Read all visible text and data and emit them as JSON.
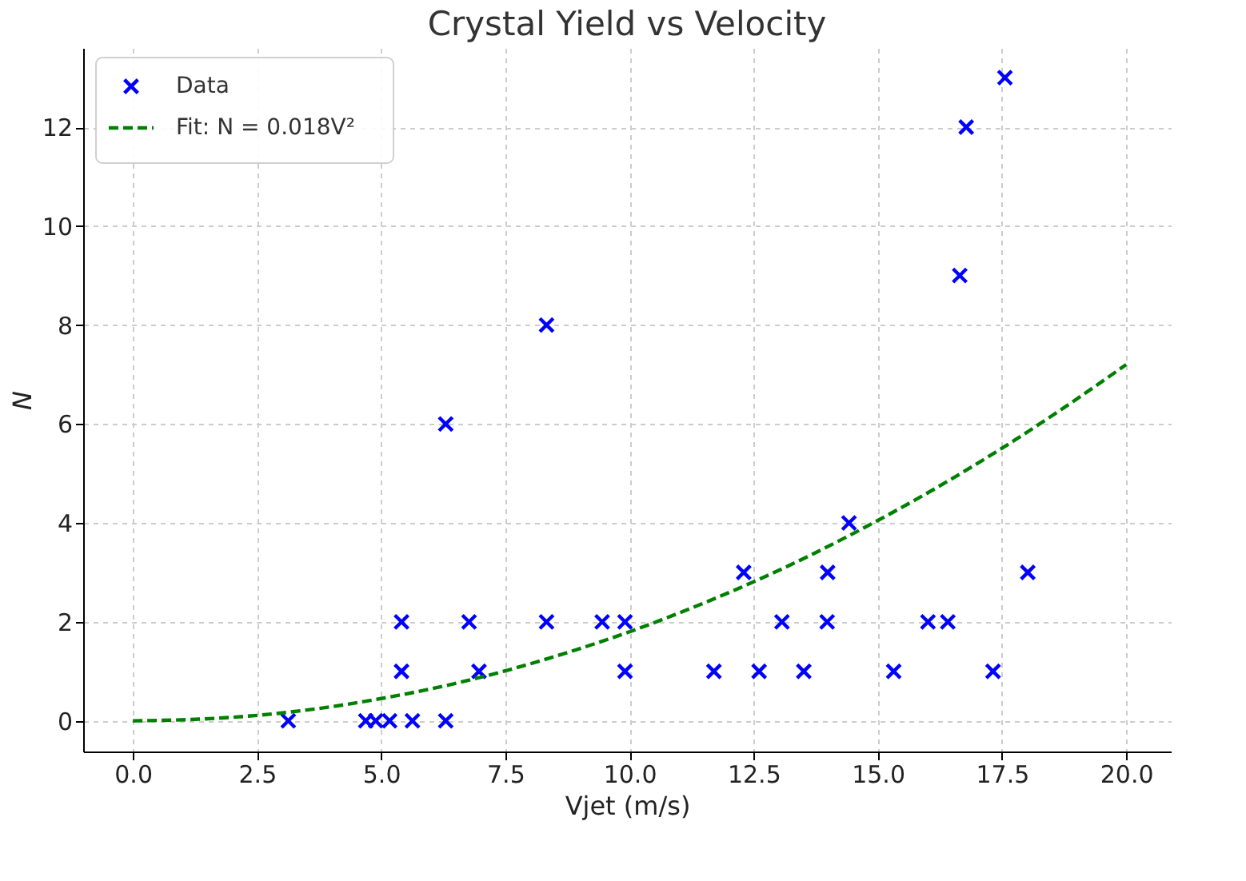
{
  "chart_data": {
    "type": "scatter",
    "title": "Crystal Yield vs Velocity",
    "xlabel": "Vjet (m/s)",
    "ylabel": "N",
    "xlim": [
      -1.0,
      20.9
    ],
    "ylim": [
      -0.62,
      13.6
    ],
    "xticks": [
      {
        "value": 0,
        "label": "0.0"
      },
      2.5,
      {
        "value": 5,
        "label": "5.0"
      },
      7.5,
      {
        "value": 10,
        "label": "10.0"
      },
      12.5,
      {
        "value": 15,
        "label": "15.0"
      },
      17.5,
      {
        "value": 20,
        "label": "20.0"
      }
    ],
    "yticks": [
      0,
      2,
      4,
      6,
      8,
      10,
      12
    ],
    "grid": true,
    "legend": "top left",
    "series": [
      {
        "name": "Data",
        "marker": "cross",
        "color": "#0000ff",
        "x": [
          3.13,
          4.69,
          4.89,
          5.17,
          5.41,
          5.41,
          5.63,
          6.3,
          6.3,
          6.77,
          6.97,
          8.33,
          8.33,
          9.45,
          9.91,
          9.91,
          11.7,
          12.3,
          12.61,
          13.07,
          13.51,
          13.98,
          13.99,
          14.42,
          15.32,
          16.01,
          16.41,
          16.65,
          16.78,
          17.32,
          17.56,
          18.02
        ],
        "values": [
          0,
          0,
          0,
          0,
          2,
          1,
          0,
          0,
          6,
          2,
          1,
          8,
          2,
          2,
          2,
          1,
          1,
          3,
          1,
          2,
          1,
          2,
          3,
          4,
          1,
          2,
          2,
          9,
          12,
          1,
          13,
          3
        ]
      },
      {
        "name": "Fit: N = 0.018V²",
        "type": "line",
        "line_style": "dashed",
        "color": "#008000",
        "x": [
          0,
          1.25,
          2.5,
          3.75,
          5,
          6.25,
          7.5,
          8.75,
          10,
          11.25,
          12.5,
          13.75,
          15,
          16.25,
          17.5,
          18.75,
          20
        ],
        "values": [
          0,
          0.03,
          0.11,
          0.25,
          0.45,
          0.7,
          1.01,
          1.38,
          1.8,
          2.28,
          2.81,
          3.4,
          4.05,
          4.75,
          5.51,
          6.33,
          7.2
        ]
      }
    ]
  }
}
